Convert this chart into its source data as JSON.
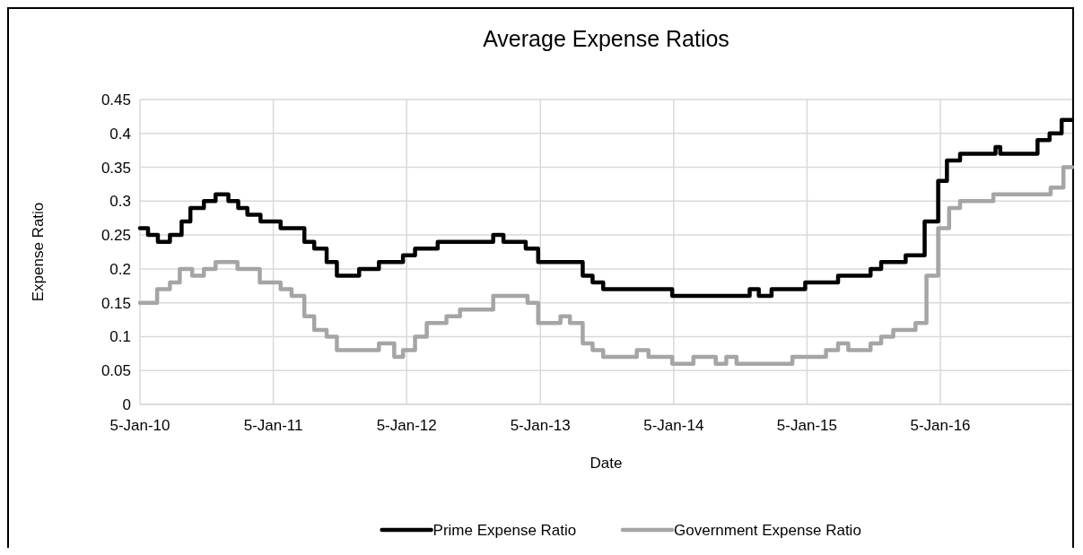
{
  "chart_data": {
    "type": "step",
    "title": "Average Expense Ratios",
    "xlabel": "Date",
    "ylabel": "Expense Ratio",
    "xlim": [
      "2010-01-05",
      "2016-12-31"
    ],
    "xticks": [
      {
        "value": "2010-01-05",
        "label": "5-Jan-10"
      },
      {
        "value": "2011-01-05",
        "label": "5-Jan-11"
      },
      {
        "value": "2012-01-05",
        "label": "5-Jan-12"
      },
      {
        "value": "2013-01-05",
        "label": "5-Jan-13"
      },
      {
        "value": "2014-01-05",
        "label": "5-Jan-14"
      },
      {
        "value": "2015-01-05",
        "label": "5-Jan-15"
      },
      {
        "value": "2016-01-05",
        "label": "5-Jan-16"
      }
    ],
    "ylim": [
      0,
      0.45
    ],
    "yticks": [
      0,
      0.05,
      0.1,
      0.15,
      0.2,
      0.25,
      0.3,
      0.35,
      0.4,
      0.45
    ],
    "grid": true,
    "legend": "bottom",
    "line_style": "solid",
    "marker": "none",
    "series": [
      {
        "name": "Prime Expense Ratio",
        "color": "#000000",
        "x": [
          "2010-01-05",
          "2010-01-27",
          "2010-02-23",
          "2010-03-28",
          "2010-04-29",
          "2010-05-23",
          "2010-06-29",
          "2010-07-31",
          "2010-09-04",
          "2010-10-01",
          "2010-10-26",
          "2010-12-01",
          "2011-01-25",
          "2011-03-31",
          "2011-04-27",
          "2011-05-31",
          "2011-06-28",
          "2011-08-28",
          "2011-10-21",
          "2011-12-26",
          "2012-01-28",
          "2012-03-30",
          "2012-08-29",
          "2012-09-26",
          "2012-11-26",
          "2012-12-30",
          "2013-05-01",
          "2013-05-28",
          "2013-06-26",
          "2014-01-01",
          "2014-08-01",
          "2014-08-26",
          "2014-09-30",
          "2014-12-31",
          "2015-03-31",
          "2015-06-28",
          "2015-07-27",
          "2015-10-02",
          "2015-11-23",
          "2015-12-30",
          "2016-01-23",
          "2016-02-28",
          "2016-06-04",
          "2016-06-17",
          "2016-09-27",
          "2016-10-30",
          "2016-12-02",
          "2016-12-31"
        ],
        "values": [
          0.26,
          0.25,
          0.24,
          0.25,
          0.27,
          0.29,
          0.3,
          0.31,
          0.3,
          0.29,
          0.28,
          0.27,
          0.26,
          0.24,
          0.23,
          0.21,
          0.19,
          0.2,
          0.21,
          0.22,
          0.23,
          0.24,
          0.25,
          0.24,
          0.23,
          0.21,
          0.19,
          0.18,
          0.17,
          0.16,
          0.17,
          0.16,
          0.17,
          0.18,
          0.19,
          0.2,
          0.21,
          0.22,
          0.27,
          0.33,
          0.36,
          0.37,
          0.38,
          0.37,
          0.39,
          0.4,
          0.42,
          0.42
        ]
      },
      {
        "name": "Government Expense Ratio",
        "color": "#a5a5a5",
        "x": [
          "2010-01-05",
          "2010-02-21",
          "2010-03-28",
          "2010-04-24",
          "2010-05-28",
          "2010-06-29",
          "2010-07-31",
          "2010-09-29",
          "2010-11-29",
          "2011-01-25",
          "2011-02-24",
          "2011-03-31",
          "2011-04-27",
          "2011-05-31",
          "2011-06-28",
          "2011-10-21",
          "2011-12-02",
          "2011-12-26",
          "2012-01-28",
          "2012-02-29",
          "2012-04-23",
          "2012-05-30",
          "2012-08-29",
          "2012-12-01",
          "2012-12-30",
          "2013-03-01",
          "2013-03-27",
          "2013-05-01",
          "2013-05-28",
          "2013-06-26",
          "2013-09-26",
          "2013-10-28",
          "2014-01-01",
          "2014-02-28",
          "2014-04-30",
          "2014-05-29",
          "2014-06-26",
          "2014-11-26",
          "2015-02-26",
          "2015-03-31",
          "2015-04-28",
          "2015-06-28",
          "2015-07-27",
          "2015-08-29",
          "2015-10-29",
          "2015-11-28",
          "2015-12-30",
          "2016-01-29",
          "2016-02-28",
          "2016-05-29",
          "2016-11-02",
          "2016-12-07",
          "2016-12-31"
        ],
        "values": [
          0.15,
          0.17,
          0.18,
          0.2,
          0.19,
          0.2,
          0.21,
          0.2,
          0.18,
          0.17,
          0.16,
          0.13,
          0.11,
          0.1,
          0.08,
          0.09,
          0.07,
          0.08,
          0.1,
          0.12,
          0.13,
          0.14,
          0.16,
          0.15,
          0.12,
          0.13,
          0.12,
          0.09,
          0.08,
          0.07,
          0.08,
          0.07,
          0.06,
          0.07,
          0.06,
          0.07,
          0.06,
          0.07,
          0.08,
          0.09,
          0.08,
          0.09,
          0.1,
          0.11,
          0.12,
          0.19,
          0.26,
          0.29,
          0.3,
          0.31,
          0.32,
          0.35,
          0.35
        ]
      }
    ]
  }
}
